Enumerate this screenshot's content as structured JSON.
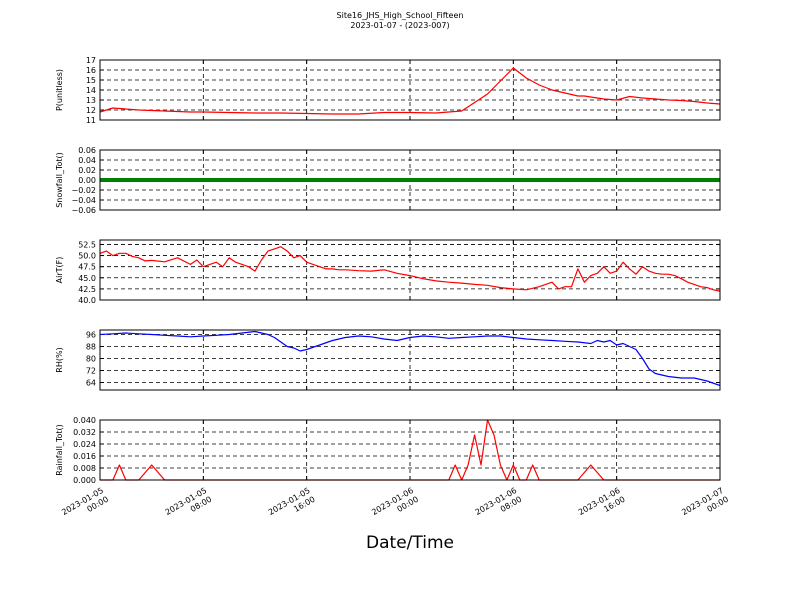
{
  "figure": {
    "title": "Site16_JHS_High_School_Fifteen",
    "subtitle": "2023-01-07 - (2023-007)",
    "xlabel": "Date/Time"
  },
  "chart_data": [
    {
      "type": "line",
      "ylabel": "P(unitless)",
      "ylim": [
        11,
        17
      ],
      "yticks": [
        "11",
        "12",
        "13",
        "14",
        "15",
        "16",
        "17"
      ],
      "grid": true,
      "color": "#ff0000",
      "x": [
        0,
        1,
        2,
        3,
        4,
        5,
        6,
        7,
        8,
        10,
        12,
        14,
        16,
        18,
        20,
        22,
        24,
        26,
        28,
        30,
        32,
        33,
        34,
        35,
        36,
        36.5,
        37,
        37.5,
        38,
        39,
        40,
        41,
        42,
        43,
        44,
        45,
        46,
        47,
        48
      ],
      "y": [
        11.8,
        12.2,
        12.1,
        12.0,
        11.95,
        11.9,
        11.85,
        11.8,
        11.8,
        11.75,
        11.7,
        11.7,
        11.65,
        11.6,
        11.6,
        11.75,
        11.75,
        11.7,
        11.9,
        13.6,
        16.2,
        15.2,
        14.5,
        14.0,
        13.7,
        13.55,
        13.4,
        13.4,
        13.3,
        13.1,
        13.0,
        13.35,
        13.2,
        13.1,
        13.0,
        12.95,
        12.85,
        12.7,
        12.6
      ],
      "x2": [
        44,
        45,
        46,
        47,
        48
      ],
      "y2": [
        12.6,
        12.5,
        12.4,
        12.3,
        12.2
      ]
    },
    {
      "type": "line",
      "ylabel": "Snowfall_Tot()",
      "ylim": [
        -0.06,
        0.06
      ],
      "yticks": [
        "−0.06",
        "−0.04",
        "−0.02",
        "0.00",
        "0.02",
        "0.04",
        "0.06"
      ],
      "grid": true,
      "color": "#008000",
      "x": [
        0,
        48
      ],
      "y": [
        0,
        0
      ]
    },
    {
      "type": "line",
      "ylabel": "AirT(F)",
      "ylim": [
        40,
        53.5
      ],
      "yticks": [
        "40.0",
        "42.5",
        "45.0",
        "47.5",
        "50.0",
        "52.5"
      ],
      "grid": true,
      "color": "#ff0000",
      "x": [
        0,
        0.5,
        1,
        1.5,
        2,
        2.5,
        3,
        3.5,
        4,
        5,
        6,
        7,
        7.5,
        8,
        8.5,
        9,
        9.5,
        10,
        10.5,
        11,
        11.5,
        12,
        12.5,
        13,
        13.5,
        14,
        14.5,
        15,
        15.5,
        16,
        16.5,
        17,
        17.5,
        18,
        18.5,
        19,
        19.5,
        20,
        21,
        22,
        23,
        24,
        25,
        26,
        27,
        28,
        29,
        30,
        31,
        32,
        33,
        34,
        35,
        35.5,
        36,
        36.5,
        37,
        37.5,
        38,
        38.5,
        39,
        39.5,
        40,
        40.5,
        41,
        41.5,
        42,
        42.5,
        43,
        43.5,
        44,
        44.5,
        45,
        45.5,
        46,
        46.5,
        47,
        47.5,
        48
      ],
      "y": [
        50.5,
        51,
        50,
        50.5,
        50.5,
        49.8,
        49.5,
        48.8,
        48.9,
        48.6,
        49.5,
        48.0,
        49.0,
        47.5,
        48.0,
        48.5,
        47.5,
        49.5,
        48.5,
        48.0,
        47.5,
        46.5,
        49.0,
        51.0,
        51.5,
        52.0,
        51.0,
        49.5,
        50.0,
        48.5,
        48.0,
        47.5,
        47.0,
        47.0,
        46.8,
        46.8,
        46.7,
        46.6,
        46.5,
        46.8,
        46.0,
        45.5,
        44.8,
        44.3,
        44.0,
        43.8,
        43.5,
        43.3,
        42.8,
        42.5,
        42.3,
        43.0,
        44.0,
        42.5,
        43.0,
        43.0,
        47.0,
        44.0,
        45.5,
        46.0,
        47.5,
        46.0,
        46.5,
        48.5,
        47.0,
        45.8,
        47.5,
        46.5,
        46.0,
        45.8,
        45.8,
        45.5,
        44.8,
        44.0,
        43.5,
        43.0,
        42.8,
        42.3,
        42.0
      ]
    },
    {
      "type": "line",
      "ylabel": "RH(%)",
      "ylim": [
        59,
        99
      ],
      "yticks": [
        "64",
        "72",
        "80",
        "88",
        "96"
      ],
      "grid": true,
      "color": "#0000ff",
      "x": [
        0,
        1,
        2,
        3,
        4,
        5,
        6,
        7,
        8,
        9,
        10,
        11,
        12,
        12.5,
        13,
        13.5,
        14,
        14.5,
        15,
        15.5,
        16,
        17,
        18,
        19,
        20,
        21,
        22,
        23,
        24,
        25,
        26,
        27,
        28,
        29,
        30,
        31,
        32,
        33,
        34,
        35,
        36,
        37,
        38,
        38.5,
        39,
        39.5,
        40,
        40.5,
        41,
        41.5,
        42,
        42.5,
        43,
        44,
        45,
        46,
        47,
        48
      ],
      "y": [
        96,
        96.5,
        97,
        96.5,
        96,
        95.5,
        95,
        94.5,
        95,
        95.5,
        96,
        97,
        98,
        97,
        96,
        94,
        91,
        88,
        87,
        85,
        86,
        89,
        92,
        94,
        95,
        94.5,
        93,
        92,
        94,
        95,
        94.5,
        93.5,
        94,
        94.5,
        95,
        95,
        94,
        93,
        92.5,
        92,
        91.5,
        91,
        90,
        92,
        91,
        92,
        89,
        90,
        88,
        86,
        80,
        73,
        70,
        68,
        67,
        67,
        65,
        62
      ]
    },
    {
      "type": "line",
      "ylabel": "Rainfall_Tot()",
      "ylim": [
        0,
        0.04
      ],
      "yticks": [
        "0.000",
        "0.008",
        "0.016",
        "0.024",
        "0.032",
        "0.040"
      ],
      "grid": true,
      "color": "#ff0000",
      "x": [
        0,
        0.5,
        1,
        1.5,
        2,
        3,
        4,
        5,
        5.5,
        6,
        7,
        8,
        10,
        12,
        14,
        16,
        18,
        20,
        22,
        24,
        25,
        26,
        26.5,
        27,
        27.5,
        28,
        28.5,
        29,
        29.5,
        30,
        30.5,
        31,
        31.5,
        32,
        32.5,
        33,
        33.5,
        34,
        34.5,
        35,
        35.5,
        36,
        37,
        38,
        39,
        40,
        41,
        42,
        43,
        44,
        45,
        46,
        47,
        48
      ],
      "y": [
        0,
        0,
        0,
        0.01,
        0,
        0,
        0.01,
        0,
        0,
        0,
        0,
        0,
        0,
        0,
        0,
        0,
        0,
        0,
        0,
        0,
        0,
        0,
        0,
        0,
        0.01,
        0,
        0.01,
        0.03,
        0.01,
        0.04,
        0.03,
        0.01,
        0,
        0.01,
        0,
        0,
        0.01,
        0,
        0,
        0,
        0,
        0,
        0,
        0.01,
        0,
        0,
        0,
        0,
        0,
        0,
        0,
        0,
        0,
        0
      ]
    }
  ],
  "xaxis": {
    "ticks": [
      {
        "x": 0,
        "line1": "2023-01-05",
        "line2": "00:00"
      },
      {
        "x": 8,
        "line1": "2023-01-05",
        "line2": "08:00"
      },
      {
        "x": 16,
        "line1": "2023-01-05",
        "line2": "16:00"
      },
      {
        "x": 24,
        "line1": "2023-01-06",
        "line2": "00:00"
      },
      {
        "x": 32,
        "line1": "2023-01-06",
        "line2": "08:00"
      },
      {
        "x": 40,
        "line1": "2023-01-06",
        "line2": "16:00"
      },
      {
        "x": 48,
        "line1": "2023-01-07",
        "line2": "00:00"
      }
    ]
  }
}
